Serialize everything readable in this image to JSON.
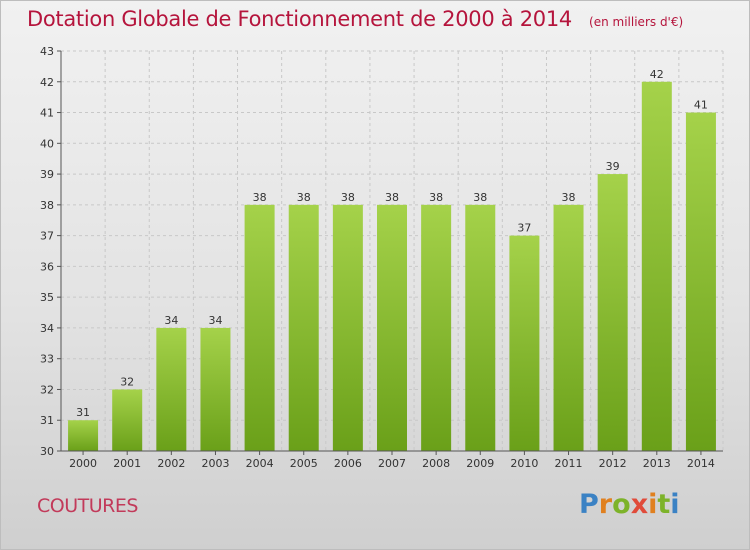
{
  "header": {
    "title": "Dotation Globale de Fonctionnement de 2000 à 2014",
    "subtitle": "(en milliers d'€)"
  },
  "footer": {
    "commune": "COUTURES",
    "logo_letters": [
      "P",
      "r",
      "o",
      "x",
      "i",
      "t",
      "i"
    ]
  },
  "colors": {
    "bar_light": "#a5d24a",
    "bar_dark": "#6aa019",
    "title": "#b5143c",
    "grid": "#c8c8c8"
  },
  "chart_data": {
    "type": "bar",
    "title": "Dotation Globale de Fonctionnement de 2000 à 2014",
    "subtitle": "(en milliers d'€)",
    "xlabel": "",
    "ylabel": "",
    "categories": [
      "2000",
      "2001",
      "2002",
      "2003",
      "2004",
      "2005",
      "2006",
      "2007",
      "2008",
      "2009",
      "2010",
      "2011",
      "2012",
      "2013",
      "2014"
    ],
    "values": [
      31,
      32,
      34,
      34,
      38,
      38,
      38,
      38,
      38,
      38,
      37,
      38,
      39,
      42,
      41
    ],
    "ylim": [
      30,
      43
    ],
    "yticks": [
      30,
      31,
      32,
      33,
      34,
      35,
      36,
      37,
      38,
      39,
      40,
      41,
      42,
      43
    ],
    "grid": true,
    "data_labels": true,
    "legend": "none"
  }
}
